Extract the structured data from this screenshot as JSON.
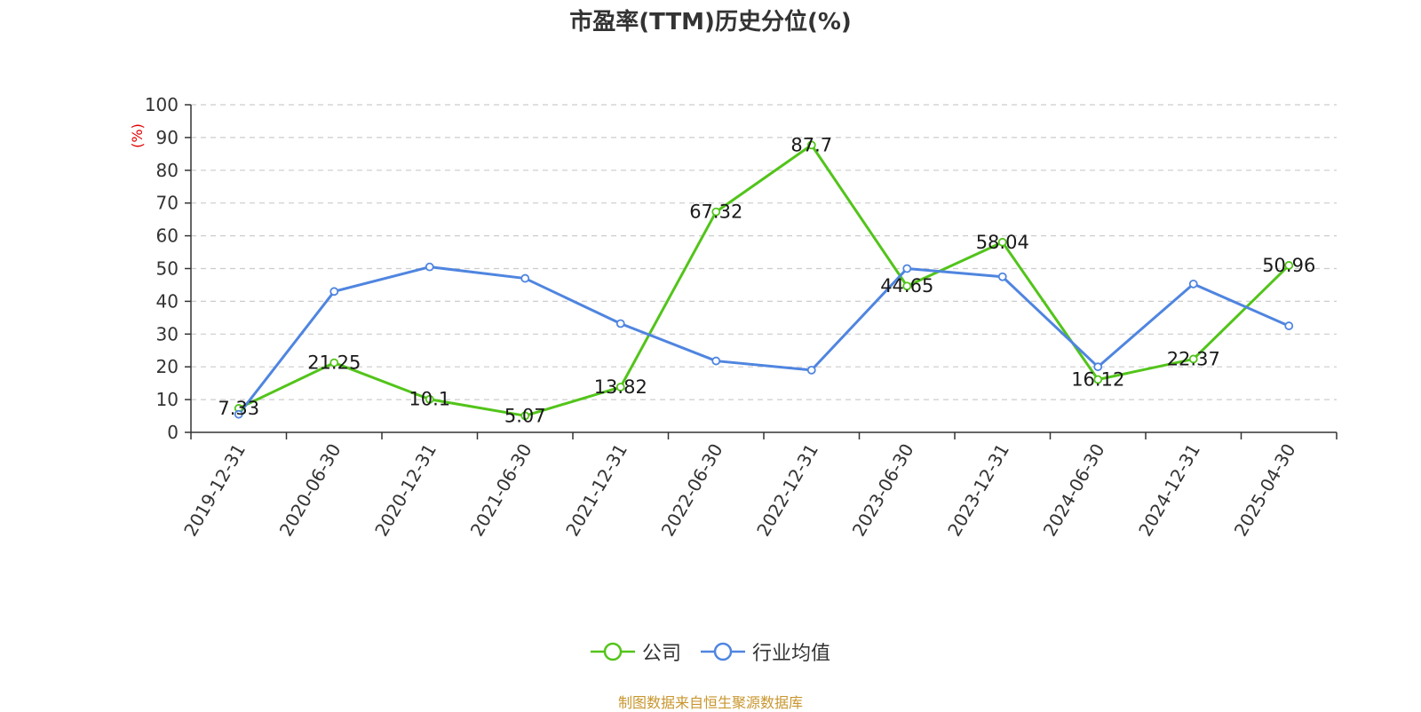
{
  "title": "市盈率(TTM)历史分位(%)",
  "source_note": "制图数据来自恒生聚源数据库",
  "chart_data": {
    "type": "line",
    "title": "市盈率(TTM)历史分位(%)",
    "ylabel": "(%)",
    "xlabel": "",
    "ylim": [
      0,
      100
    ],
    "yticks": [
      0,
      10,
      20,
      30,
      40,
      50,
      60,
      70,
      80,
      90,
      100
    ],
    "categories": [
      "2019-12-31",
      "2020-06-30",
      "2020-12-31",
      "2021-06-30",
      "2021-12-31",
      "2022-06-30",
      "2022-12-31",
      "2023-06-30",
      "2023-12-31",
      "2024-06-30",
      "2024-12-31",
      "2025-04-30"
    ],
    "grid": true,
    "legend_position": "bottom",
    "series": [
      {
        "name": "公司",
        "color": "#52c41a",
        "show_labels": true,
        "values": [
          7.33,
          21.25,
          10.1,
          5.07,
          13.82,
          67.32,
          87.7,
          44.65,
          58.04,
          16.12,
          22.37,
          50.96
        ]
      },
      {
        "name": "行业均值",
        "color": "#4f85e0",
        "show_labels": false,
        "values": [
          5.5,
          43.0,
          50.5,
          47.0,
          33.2,
          21.8,
          19.0,
          50.0,
          47.5,
          20.0,
          45.3,
          32.5
        ]
      }
    ]
  }
}
